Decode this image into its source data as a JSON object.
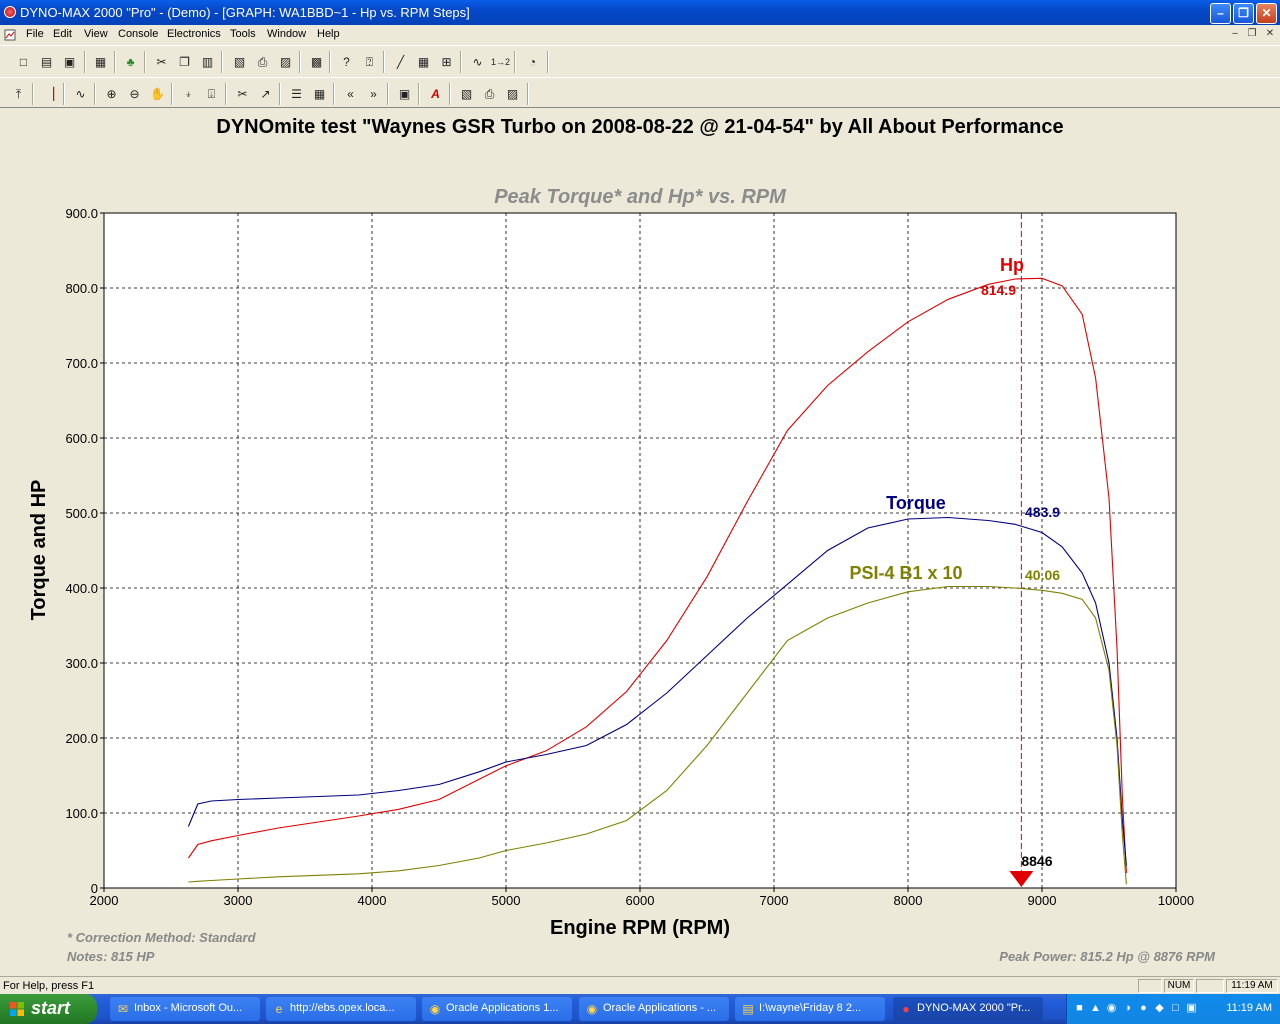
{
  "window": {
    "title": "DYNO-MAX 2000 \"Pro\" - (Demo) - [GRAPH: WA1BBD~1 - Hp vs. RPM Steps]",
    "minimize_glyph": "–",
    "restore_glyph": "❐",
    "close_glyph": "✕"
  },
  "menubar": {
    "items": [
      "File",
      "Edit",
      "View",
      "Console",
      "Electronics",
      "Tools",
      "Window",
      "Help"
    ],
    "mdi_minimize": "–",
    "mdi_restore": "❐",
    "mdi_close": "✕"
  },
  "toolbar1": {
    "buttons": [
      {
        "name": "new-icon",
        "glyph": "□"
      },
      {
        "name": "open-icon",
        "glyph": "▤"
      },
      {
        "name": "save-icon",
        "glyph": "▣"
      },
      {
        "name": "folder-icon",
        "glyph": "▦"
      },
      {
        "name": "tree-icon",
        "glyph": "♣"
      },
      {
        "name": "cut-icon",
        "glyph": "✂"
      },
      {
        "name": "copy-icon",
        "glyph": "❐"
      },
      {
        "name": "paste-icon",
        "glyph": "▥"
      },
      {
        "name": "book-icon",
        "glyph": "▧"
      },
      {
        "name": "print-icon",
        "glyph": "⎙"
      },
      {
        "name": "print-preview-icon",
        "glyph": "▨"
      },
      {
        "name": "clipboard-icon",
        "glyph": "▩"
      },
      {
        "name": "help-icon",
        "glyph": "?"
      },
      {
        "name": "context-help-icon",
        "glyph": "⍰"
      },
      {
        "name": "graph-icon",
        "glyph": "╱"
      },
      {
        "name": "table-icon",
        "glyph": "▦"
      },
      {
        "name": "grid-icon",
        "glyph": "⊞"
      },
      {
        "name": "curve-icon",
        "glyph": "∿"
      },
      {
        "name": "step-icon",
        "glyph": "1→2"
      },
      {
        "name": "gauge-icon",
        "glyph": "◔"
      }
    ]
  },
  "toolbar2": {
    "buttons": [
      {
        "name": "pin-icon",
        "glyph": "⤒"
      },
      {
        "name": "cursor-icon",
        "glyph": "▕"
      },
      {
        "name": "curves-icon",
        "glyph": "∿"
      },
      {
        "name": "zoom-in-icon",
        "glyph": "⊕"
      },
      {
        "name": "zoom-out-icon",
        "glyph": "⊖"
      },
      {
        "name": "hand-icon",
        "glyph": "✋"
      },
      {
        "name": "scale-icon",
        "glyph": "⍖"
      },
      {
        "name": "scale2-icon",
        "glyph": "⍗"
      },
      {
        "name": "scissors-icon",
        "glyph": "✂"
      },
      {
        "name": "pointer-icon",
        "glyph": "↗"
      },
      {
        "name": "list-icon",
        "glyph": "☰"
      },
      {
        "name": "table2-icon",
        "glyph": "▦"
      },
      {
        "name": "prev-icon",
        "glyph": "«"
      },
      {
        "name": "next-icon",
        "glyph": "»"
      },
      {
        "name": "window-icon",
        "glyph": "▣"
      },
      {
        "name": "font-icon",
        "glyph": "A"
      },
      {
        "name": "book2-icon",
        "glyph": "▧"
      },
      {
        "name": "print2-icon",
        "glyph": "⎙"
      },
      {
        "name": "preview2-icon",
        "glyph": "▨"
      }
    ]
  },
  "graph": {
    "header": "DYNOmite test \"Waynes GSR Turbo on 2008-08-22 @ 21-04-54\" by All About Performance",
    "correction_note": "* Correction Method: Standard",
    "notes": "Notes: 815 HP",
    "peak_power": "Peak Power: 815.2 Hp @ 8876 RPM"
  },
  "chart_data": {
    "type": "line",
    "title": "Peak Torque* and Hp* vs. RPM",
    "xlabel": "Engine RPM (RPM)",
    "ylabel": "Torque and HP",
    "xlim": [
      2000,
      10000
    ],
    "ylim": [
      0,
      900
    ],
    "x_ticks": [
      "2000",
      "3000",
      "4000",
      "5000",
      "6000",
      "7000",
      "8000",
      "9000",
      "10000"
    ],
    "y_ticks": [
      "0",
      "100.0",
      "200.0",
      "300.0",
      "400.0",
      "500.0",
      "600.0",
      "700.0",
      "800.0",
      "900.0"
    ],
    "grid": true,
    "cursor": {
      "rpm": 8846,
      "label": "8846"
    },
    "series": [
      {
        "name": "Hp",
        "color": "#e00000",
        "cursor_value": "814.9",
        "x": [
          2630,
          2700,
          2800,
          3000,
          3300,
          3600,
          3900,
          4200,
          4500,
          4800,
          5000,
          5300,
          5600,
          5900,
          6200,
          6500,
          6800,
          7100,
          7400,
          7700,
          8000,
          8300,
          8600,
          8800,
          9000,
          9150,
          9300,
          9400,
          9500,
          9560,
          9600,
          9630
        ],
        "y": [
          40,
          58,
          63,
          70,
          80,
          88,
          96,
          105,
          118,
          145,
          163,
          183,
          215,
          262,
          330,
          415,
          515,
          610,
          670,
          715,
          755,
          785,
          805,
          812,
          813,
          803,
          765,
          680,
          520,
          320,
          120,
          20
        ]
      },
      {
        "name": "Torque",
        "color": "#000080",
        "cursor_value": "483.9",
        "x": [
          2630,
          2700,
          2800,
          3000,
          3300,
          3600,
          3900,
          4200,
          4500,
          4800,
          5000,
          5300,
          5600,
          5900,
          6200,
          6500,
          6800,
          7100,
          7400,
          7700,
          8000,
          8300,
          8600,
          8800,
          9000,
          9150,
          9300,
          9400,
          9500,
          9560,
          9600,
          9630
        ],
        "y": [
          82,
          112,
          116,
          118,
          120,
          122,
          124,
          130,
          138,
          155,
          168,
          178,
          190,
          218,
          260,
          310,
          360,
          405,
          450,
          480,
          492,
          494,
          490,
          485,
          474,
          455,
          420,
          380,
          300,
          200,
          90,
          30
        ]
      },
      {
        "name": "PSI-4 B1 x 10",
        "color": "#808000",
        "cursor_value": "40.06",
        "x": [
          2630,
          2700,
          2800,
          3000,
          3300,
          3600,
          3900,
          4200,
          4500,
          4800,
          5000,
          5300,
          5600,
          5900,
          6200,
          6500,
          6800,
          7100,
          7400,
          7700,
          8000,
          8300,
          8600,
          8800,
          9000,
          9150,
          9300,
          9400,
          9500,
          9560,
          9600,
          9630
        ],
        "y": [
          8,
          9,
          10,
          12,
          15,
          17,
          19,
          23,
          30,
          40,
          50,
          60,
          72,
          90,
          130,
          190,
          260,
          330,
          360,
          380,
          395,
          402,
          402,
          400,
          397,
          393,
          385,
          360,
          290,
          190,
          70,
          5
        ]
      }
    ]
  },
  "statusbar": {
    "help_text": "For Help, press F1",
    "num": "NUM",
    "time": "11:19 AM"
  },
  "taskbar": {
    "start_label": "start",
    "tasks": [
      {
        "label": "Inbox - Microsoft Ou...",
        "glyph": "✉"
      },
      {
        "label": "http://ebs.opex.loca...",
        "glyph": "e"
      },
      {
        "label": "Oracle Applications 1...",
        "glyph": "◉"
      },
      {
        "label": "Oracle Applications - ...",
        "glyph": "◉"
      },
      {
        "label": "I:\\wayne\\Friday 8 2...",
        "glyph": "▤"
      },
      {
        "label": "DYNO-MAX 2000 \"Pr...",
        "glyph": "●"
      }
    ],
    "clock": "11:19 AM"
  }
}
